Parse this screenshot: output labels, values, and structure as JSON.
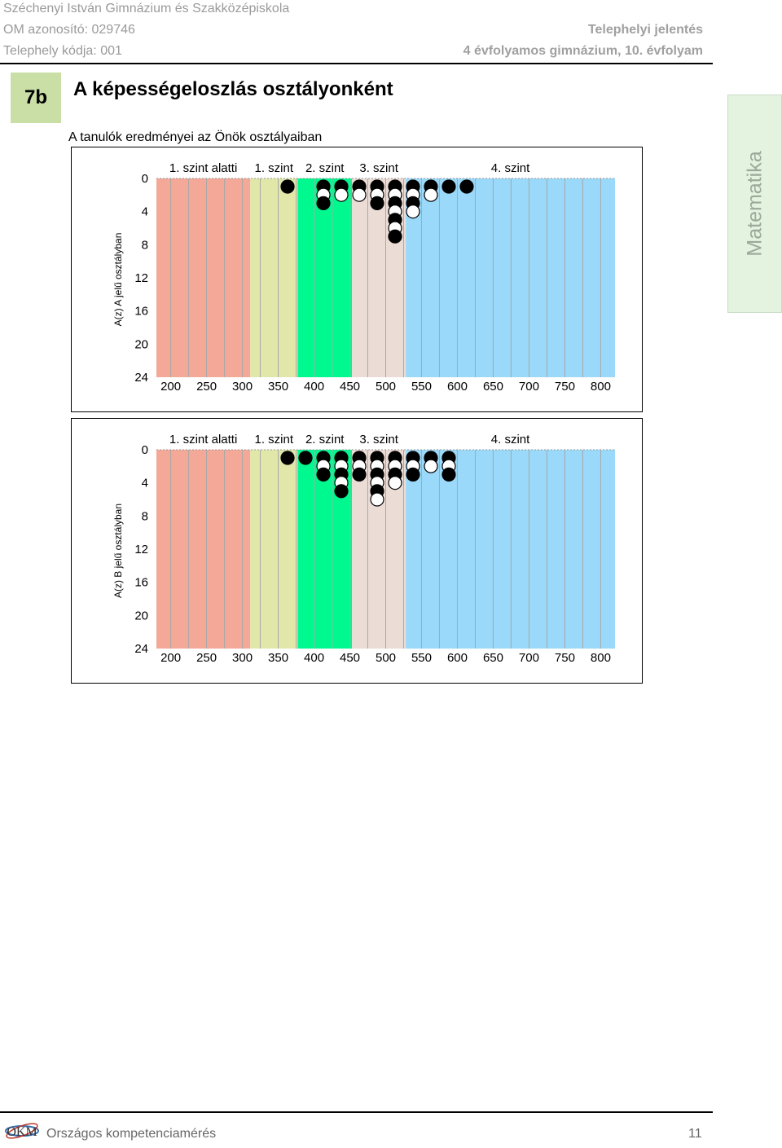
{
  "header": {
    "school": "Széchenyi István Gimnázium és Szakközépiskola",
    "om_id": "OM azonosító: 029746",
    "site_code": "Telephely kódja: 001",
    "report_type": "Telephelyi jelentés",
    "grade": "4 évfolyamos gimnázium, 10. évfolyam"
  },
  "section": {
    "number": "7b",
    "title": "A képességeloszlás osztályonként",
    "intro": "A tanulók eredményei az Önök osztályaiban"
  },
  "side_tab": {
    "label": "Matematika"
  },
  "footer": {
    "org": "Országos kompetenciamérés",
    "page": "11",
    "logo_text": "OKM"
  },
  "colors": {
    "below_level1": "#f4a898",
    "level1": "#e0e7a8",
    "level2": "#00f98f",
    "level3": "#ecdcd6",
    "level4": "#9ad9f9",
    "grid": "#a8a8a8",
    "dot_dark": "#000000",
    "dot_light": "#ffffff",
    "section_box": "#c9dfa6"
  },
  "chart_data": [
    {
      "type": "scatter",
      "ylabel": "A(z) A jelű osztályban",
      "x_ticks": [
        "200",
        "250",
        "300",
        "350",
        "400",
        "450",
        "500",
        "550",
        "600",
        "650",
        "700",
        "750",
        "800"
      ],
      "y_ticks": [
        "0",
        "4",
        "8",
        "12",
        "16",
        "20",
        "24"
      ],
      "xlim": [
        180,
        820
      ],
      "ylim": [
        0,
        24
      ],
      "y_inverted": true,
      "band_labels": [
        "1. szint alatti",
        "1. szint",
        "2. szint",
        "3. szint",
        "4. szint"
      ],
      "band_ranges": [
        [
          180,
          311
        ],
        [
          311,
          377
        ],
        [
          377,
          453
        ],
        [
          453,
          528
        ],
        [
          528,
          820
        ]
      ],
      "bin_width": 25,
      "grid": true,
      "columns": [
        {
          "x": 375,
          "dots": [
            "d"
          ]
        },
        {
          "x": 425,
          "dots": [
            "d",
            "w",
            "d"
          ]
        },
        {
          "x": 450,
          "dots": [
            "d",
            "w"
          ]
        },
        {
          "x": 475,
          "dots": [
            "d",
            "w"
          ]
        },
        {
          "x": 500,
          "dots": [
            "d",
            "w",
            "d"
          ]
        },
        {
          "x": 525,
          "dots": [
            "d",
            "w",
            "d",
            "w",
            "d",
            "w",
            "d"
          ]
        },
        {
          "x": 550,
          "dots": [
            "d",
            "w",
            "d",
            "w"
          ]
        },
        {
          "x": 575,
          "dots": [
            "d",
            "w"
          ]
        },
        {
          "x": 600,
          "dots": [
            "d"
          ]
        },
        {
          "x": 625,
          "dots": [
            "d"
          ]
        }
      ]
    },
    {
      "type": "scatter",
      "ylabel": "A(z) B jelű osztályban",
      "x_ticks": [
        "200",
        "250",
        "300",
        "350",
        "400",
        "450",
        "500",
        "550",
        "600",
        "650",
        "700",
        "750",
        "800"
      ],
      "y_ticks": [
        "0",
        "4",
        "8",
        "12",
        "16",
        "20",
        "24"
      ],
      "xlim": [
        180,
        820
      ],
      "ylim": [
        0,
        24
      ],
      "y_inverted": true,
      "band_labels": [
        "1. szint alatti",
        "1. szint",
        "2. szint",
        "3. szint",
        "4. szint"
      ],
      "band_ranges": [
        [
          180,
          311
        ],
        [
          311,
          377
        ],
        [
          377,
          453
        ],
        [
          453,
          528
        ],
        [
          528,
          820
        ]
      ],
      "bin_width": 25,
      "grid": true,
      "columns": [
        {
          "x": 375,
          "dots": [
            "d"
          ]
        },
        {
          "x": 400,
          "dots": [
            "d"
          ]
        },
        {
          "x": 425,
          "dots": [
            "d",
            "w",
            "d"
          ]
        },
        {
          "x": 450,
          "dots": [
            "d",
            "w",
            "d",
            "w",
            "d"
          ]
        },
        {
          "x": 475,
          "dots": [
            "d",
            "w",
            "d"
          ]
        },
        {
          "x": 500,
          "dots": [
            "d",
            "w",
            "d",
            "w",
            "d",
            "w"
          ]
        },
        {
          "x": 525,
          "dots": [
            "d",
            "w",
            "d",
            "w"
          ]
        },
        {
          "x": 550,
          "dots": [
            "d",
            "w",
            "d"
          ]
        },
        {
          "x": 575,
          "dots": [
            "d",
            "w"
          ]
        },
        {
          "x": 600,
          "dots": [
            "d",
            "w",
            "d"
          ]
        }
      ]
    }
  ]
}
